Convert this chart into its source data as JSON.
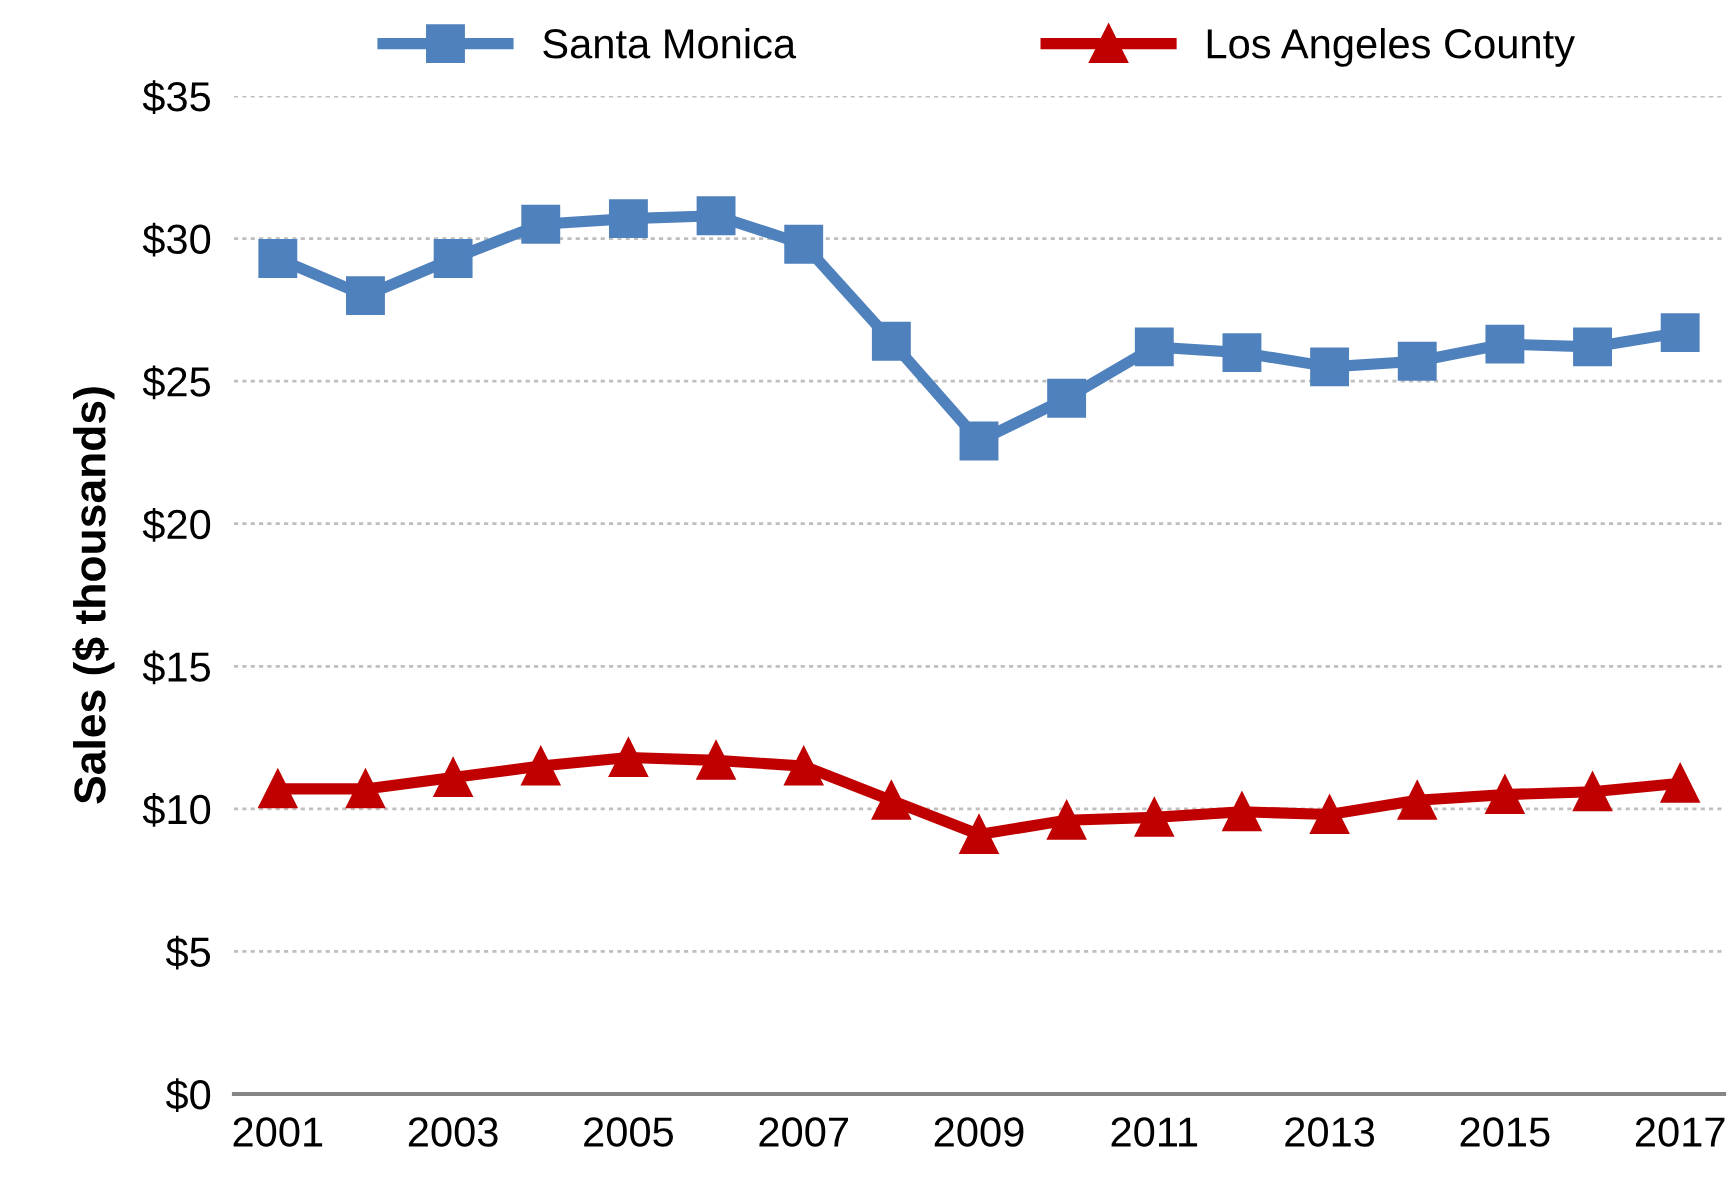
{
  "chart_data": {
    "type": "line",
    "ylabel": "Sales ($ thousands)",
    "x": [
      2001,
      2002,
      2003,
      2004,
      2005,
      2006,
      2007,
      2008,
      2009,
      2010,
      2011,
      2012,
      2013,
      2014,
      2015,
      2016,
      2017
    ],
    "series": [
      {
        "name": "Santa Monica",
        "color": "#4f81bd",
        "marker": "square",
        "values": [
          29.3,
          28.0,
          29.3,
          30.5,
          30.7,
          30.8,
          29.8,
          26.4,
          22.9,
          24.4,
          26.2,
          26.0,
          25.5,
          25.7,
          26.3,
          26.2,
          26.7
        ]
      },
      {
        "name": "Los Angeles County",
        "color": "#c00000",
        "marker": "triangle",
        "values": [
          10.7,
          10.7,
          11.1,
          11.5,
          11.8,
          11.7,
          11.5,
          10.3,
          9.1,
          9.6,
          9.7,
          9.9,
          9.8,
          10.3,
          10.5,
          10.6,
          10.9
        ]
      }
    ],
    "xlim": [
      2000.5,
      2017.5
    ],
    "xticks": [
      2001,
      2003,
      2005,
      2007,
      2009,
      2011,
      2013,
      2015,
      2017
    ],
    "ylim": [
      0,
      35
    ],
    "yticks": [
      {
        "value": 0,
        "label": "$0"
      },
      {
        "value": 5,
        "label": "$5"
      },
      {
        "value": 10,
        "label": "$10"
      },
      {
        "value": 15,
        "label": "$15"
      },
      {
        "value": 20,
        "label": "$20"
      },
      {
        "value": 25,
        "label": "$25"
      },
      {
        "value": 30,
        "label": "$30"
      },
      {
        "value": 35,
        "label": "$35"
      }
    ],
    "grid": "y",
    "legend": "top",
    "line_style": "solid"
  }
}
